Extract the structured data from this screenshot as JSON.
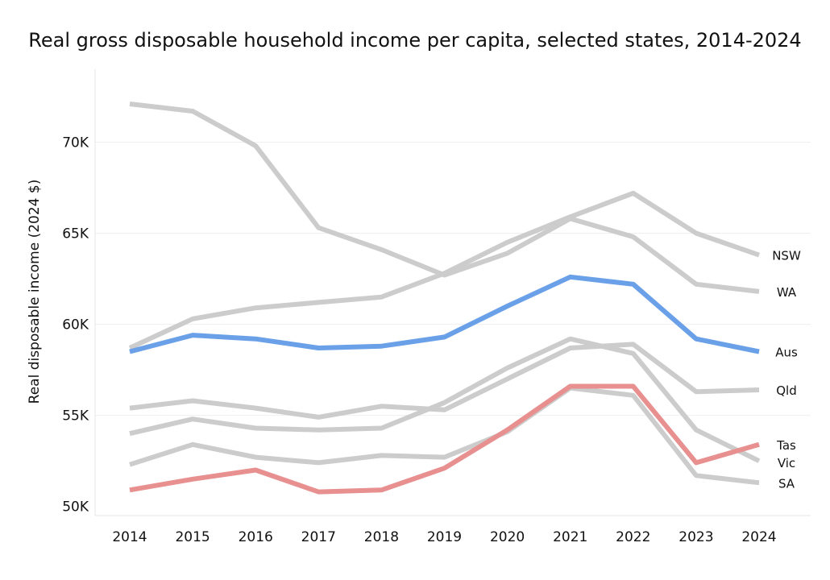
{
  "chart_data": {
    "type": "line",
    "title": "Real gross disposable household income per capita, selected states, 2014-2024",
    "xlabel": "",
    "ylabel": "Real disposable income (2024 $)",
    "x": [
      "2014",
      "2015",
      "2016",
      "2017",
      "2018",
      "2019",
      "2020",
      "2021",
      "2022",
      "2023",
      "2024"
    ],
    "ylim": [
      49500,
      74000
    ],
    "yticks": [
      50000,
      55000,
      60000,
      65000,
      70000
    ],
    "ytick_labels": [
      "50K",
      "55K",
      "60K",
      "65K",
      "70K"
    ],
    "grid": "horizontal",
    "legend": "direct labels at line ends (right)",
    "series": [
      {
        "name": "WA",
        "color": "#cccccc",
        "values": [
          72100,
          71700,
          69800,
          65300,
          64100,
          62700,
          63900,
          65800,
          64800,
          62200,
          61800
        ]
      },
      {
        "name": "NSW",
        "color": "#cccccc",
        "values": [
          58700,
          60300,
          60900,
          61200,
          61500,
          62800,
          64500,
          65900,
          67200,
          65000,
          63800
        ]
      },
      {
        "name": "Aus",
        "color": "#6aa0e8",
        "values": [
          58500,
          59400,
          59200,
          58700,
          58800,
          59300,
          61000,
          62600,
          62200,
          59200,
          58500
        ]
      },
      {
        "name": "Qld",
        "color": "#cccccc",
        "values": [
          55400,
          55800,
          55400,
          54900,
          55500,
          55300,
          57000,
          58700,
          58900,
          56300,
          56400
        ]
      },
      {
        "name": "Tas",
        "color": "#e89090",
        "values": [
          50900,
          51500,
          52000,
          50800,
          50900,
          52100,
          54200,
          56600,
          56600,
          52400,
          53400
        ]
      },
      {
        "name": "Vic",
        "color": "#cccccc",
        "values": [
          54000,
          54800,
          54300,
          54200,
          54300,
          55700,
          57600,
          59200,
          58400,
          54200,
          52500
        ]
      },
      {
        "name": "SA",
        "color": "#cccccc",
        "values": [
          52300,
          53400,
          52700,
          52400,
          52800,
          52700,
          54100,
          56500,
          56100,
          51700,
          51300
        ]
      }
    ]
  }
}
